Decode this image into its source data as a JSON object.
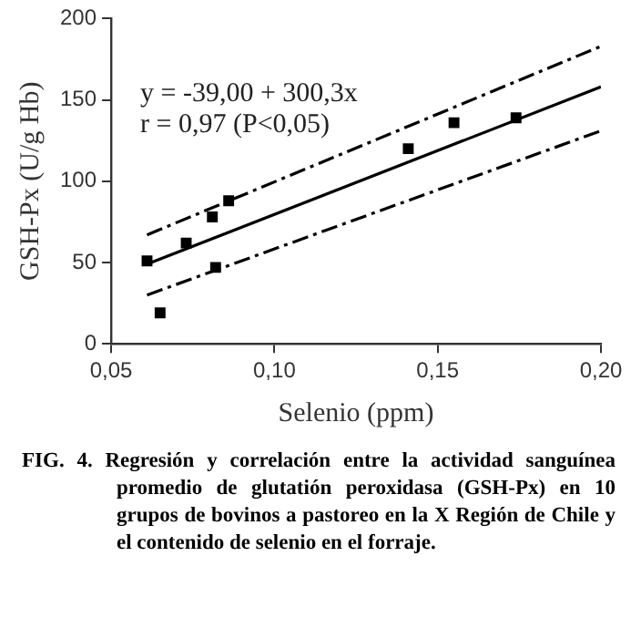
{
  "chart_data": {
    "type": "scatter",
    "xlabel": "Selenio (ppm)",
    "ylabel": "GSH-Px (U/g Hb)",
    "xlim": [
      0.05,
      0.2
    ],
    "xticks": [
      {
        "value": 0.05,
        "label": "0,05"
      },
      {
        "value": 0.1,
        "label": "0,10"
      },
      {
        "value": 0.15,
        "label": "0,15"
      },
      {
        "value": 0.2,
        "label": "0,20"
      }
    ],
    "ylim": [
      0,
      200
    ],
    "yticks": [
      0,
      50,
      100,
      150,
      200
    ],
    "grid": false,
    "legend": false,
    "marker": "square",
    "series": [
      {
        "type": "scatter",
        "color": "#000000",
        "x": [
          0.061,
          0.065,
          0.073,
          0.081,
          0.082,
          0.086,
          0.141,
          0.155,
          0.174
        ],
        "values": [
          51,
          19,
          62,
          78,
          47,
          88,
          120,
          136,
          139
        ]
      },
      {
        "type": "line",
        "color": "#000000",
        "x": [
          0.061,
          0.2
        ],
        "values": [
          49,
          158
        ],
        "line_style": "solid",
        "marker": "none"
      },
      {
        "type": "line",
        "color": "#000000",
        "x": [
          0.061,
          0.2
        ],
        "values": [
          67,
          183
        ],
        "line_style": "dashed",
        "marker": "none"
      },
      {
        "type": "line",
        "color": "#000000",
        "x": [
          0.061,
          0.2
        ],
        "values": [
          30,
          131
        ],
        "line_style": "dashed",
        "marker": "none"
      }
    ],
    "annotations": [
      "y = -39,00 + 300,3x",
      "r = 0,97 (P<0,05)",
      "FIG. 4. Regresión y correlación entre la actividad sanguínea promedio de glutatión peroxidasa (GSH-Px) en 10 grupos de bovinos a pastoreo en la X Región de Chile y el contenido de selenio en el forraje."
    ]
  }
}
